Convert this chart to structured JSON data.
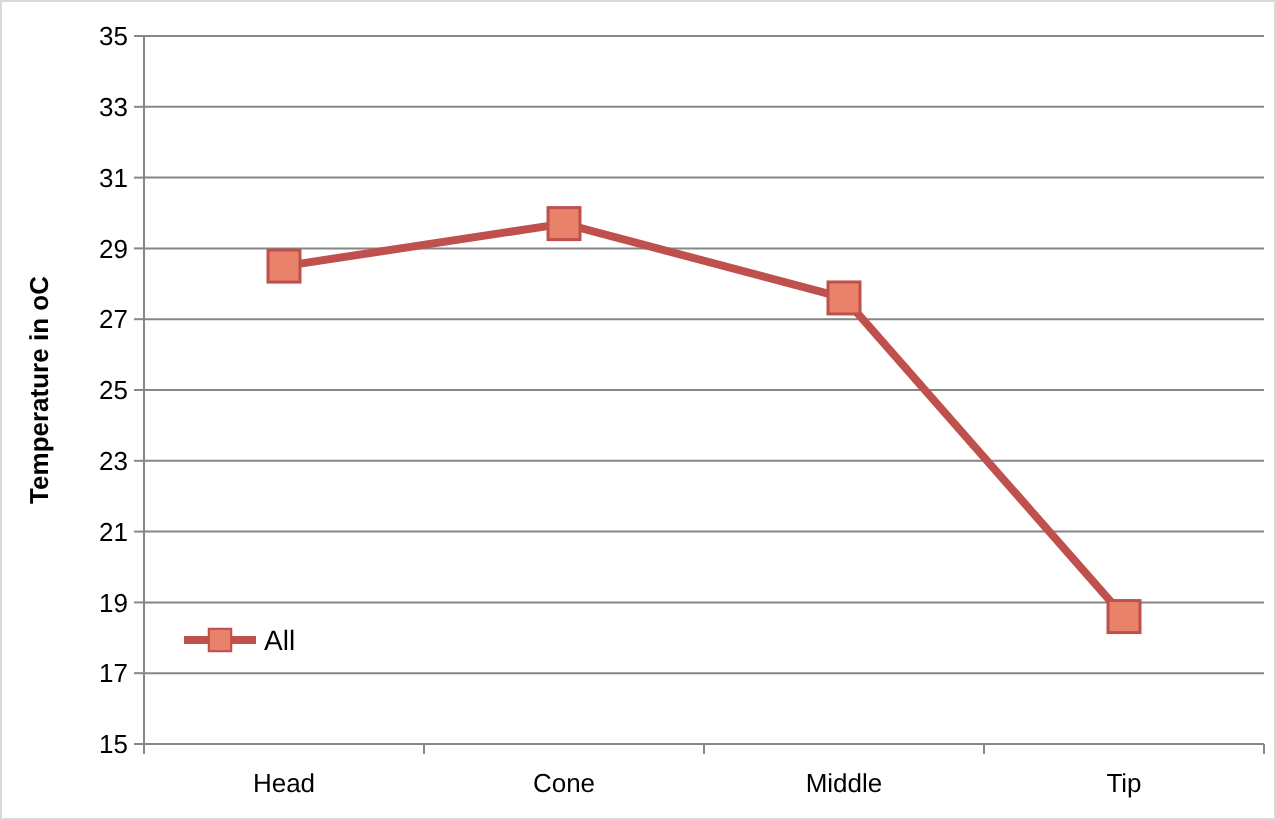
{
  "chart_data": {
    "type": "line",
    "ylabel": "Temperature in oC",
    "categories": [
      "Head",
      "Cone",
      "Middle",
      "Tip"
    ],
    "series": [
      {
        "name": "All",
        "color": "#c0504d",
        "values": [
          28.5,
          29.7,
          27.6,
          18.6
        ]
      }
    ],
    "ylim": [
      15,
      35
    ],
    "yticks": [
      15,
      17,
      19,
      21,
      23,
      25,
      27,
      29,
      31,
      33,
      35
    ],
    "grid": "y",
    "legend": "bottom left",
    "marker": "square"
  }
}
